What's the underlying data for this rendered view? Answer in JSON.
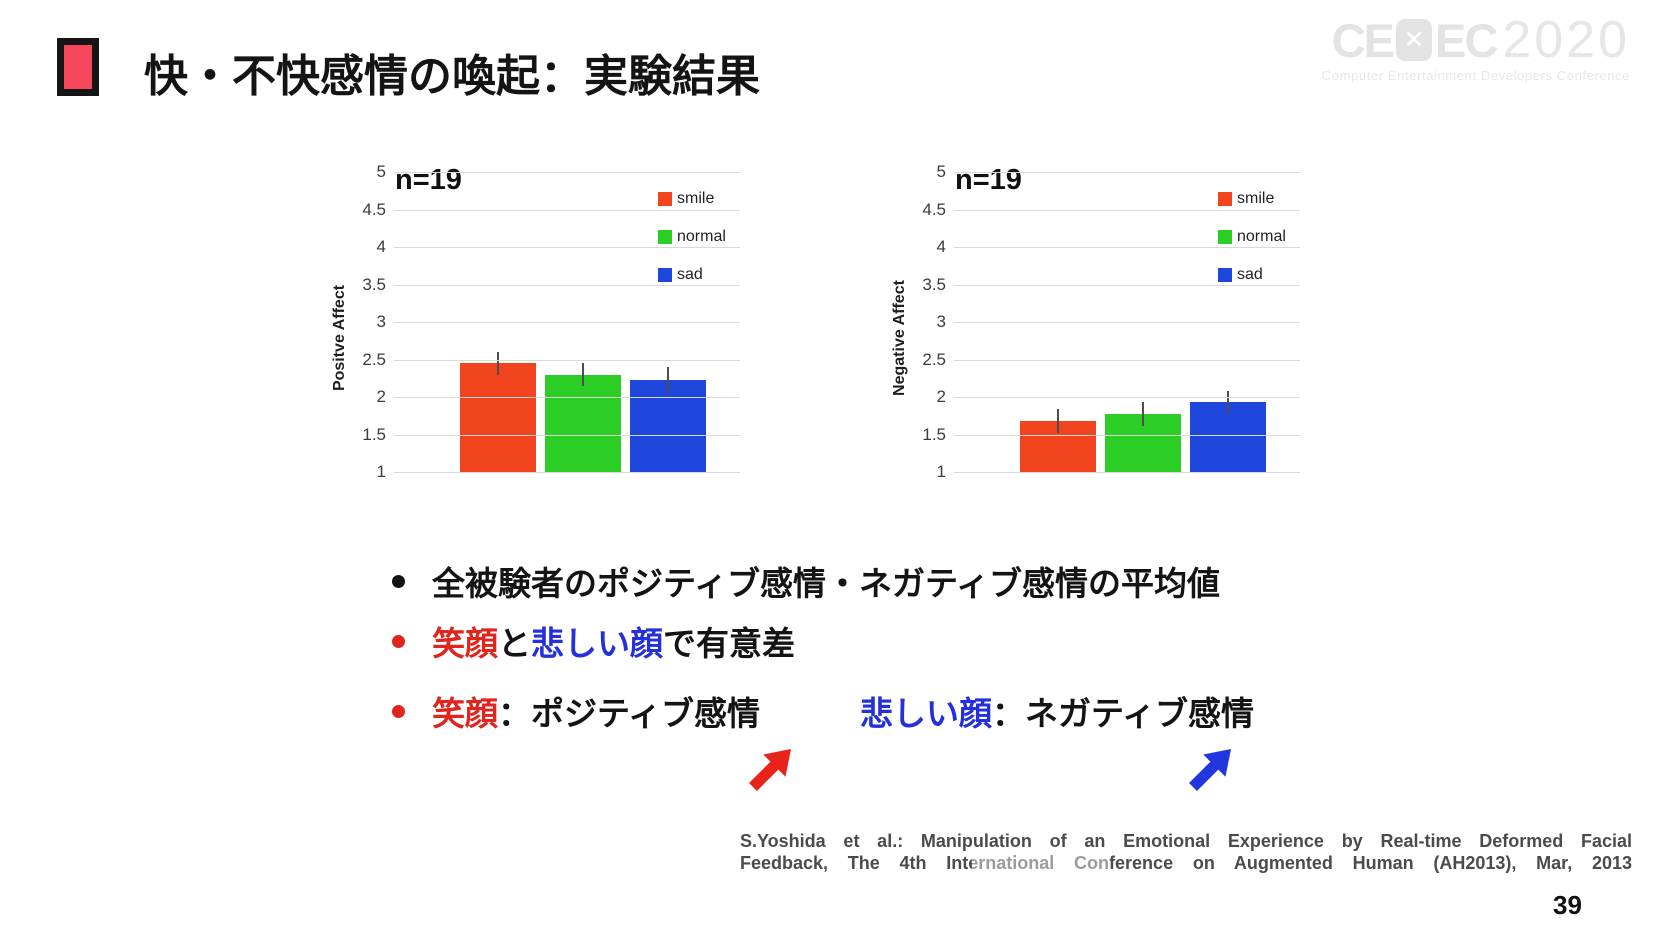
{
  "slide": {
    "title": "快・不快感情の喚起：実験結果",
    "page_number": "39",
    "accent_color": "#f6465c"
  },
  "logo": {
    "part1": "CE",
    "cross": "✕",
    "part2": "EC",
    "year": "2020",
    "subtitle": "Computer Entertainment Developers Conference"
  },
  "chart_data": [
    {
      "type": "bar",
      "n_label": "n=19",
      "ylabel": "Positve Affect",
      "xlabel": "",
      "ylim": [
        1,
        5
      ],
      "yticks": [
        5,
        4.5,
        4,
        3.5,
        3,
        2.5,
        2,
        1.5,
        1
      ],
      "grid": true,
      "legend_position": "inside-top-right",
      "categories": [
        "smile",
        "normal",
        "sad"
      ],
      "series": [
        {
          "name": "smile",
          "color": "#f2431f",
          "value": 2.45,
          "error": 0.15
        },
        {
          "name": "normal",
          "color": "#2cce25",
          "value": 2.3,
          "error": 0.15
        },
        {
          "name": "sad",
          "color": "#1e46dd",
          "value": 2.23,
          "error": 0.17
        }
      ]
    },
    {
      "type": "bar",
      "n_label": "n=19",
      "ylabel": "Negative Affect",
      "xlabel": "",
      "ylim": [
        1,
        5
      ],
      "yticks": [
        5,
        4.5,
        4,
        3.5,
        3,
        2.5,
        2,
        1.5,
        1
      ],
      "grid": true,
      "legend_position": "inside-top-right",
      "categories": [
        "smile",
        "normal",
        "sad"
      ],
      "series": [
        {
          "name": "smile",
          "color": "#f2431f",
          "value": 1.68,
          "error": 0.16
        },
        {
          "name": "normal",
          "color": "#2cce25",
          "value": 1.78,
          "error": 0.16
        },
        {
          "name": "sad",
          "color": "#1e46dd",
          "value": 1.93,
          "error": 0.15
        }
      ]
    }
  ],
  "bullets": [
    {
      "bullet_color": "#141414",
      "segments": [
        {
          "text": "全被験者のポジティブ感情・ネガティブ感情の平均値",
          "color": "#141414"
        }
      ]
    },
    {
      "bullet_color": "#e0251c",
      "segments": [
        {
          "text": "笑顔",
          "color": "#e0251c"
        },
        {
          "text": "と",
          "color": "#141414"
        },
        {
          "text": "悲しい顔",
          "color": "#2430db"
        },
        {
          "text": "で有意差",
          "color": "#141414"
        }
      ]
    },
    {
      "bullet_color": "#e0251c",
      "segments": [
        {
          "text": "笑顔",
          "color": "#e0251c"
        },
        {
          "text": "：ポジティブ感情",
          "color": "#141414"
        },
        {
          "text": "悲しい顔",
          "color": "#2430db",
          "gap_before": true
        },
        {
          "text": "：ネガティブ感情",
          "color": "#141414"
        }
      ]
    }
  ],
  "arrows": [
    {
      "name": "red-up-right-arrow",
      "color": "#e8231a"
    },
    {
      "name": "blue-up-right-arrow",
      "color": "#2136dd"
    }
  ],
  "citation": {
    "line1": "S.Yoshida et al.: Manipulation of an Emotional Experience by Real-time Deformed Facial",
    "line2": "Feedback, The 4th International Conference on Augmented Human (AH2013), Mar, 2013"
  }
}
